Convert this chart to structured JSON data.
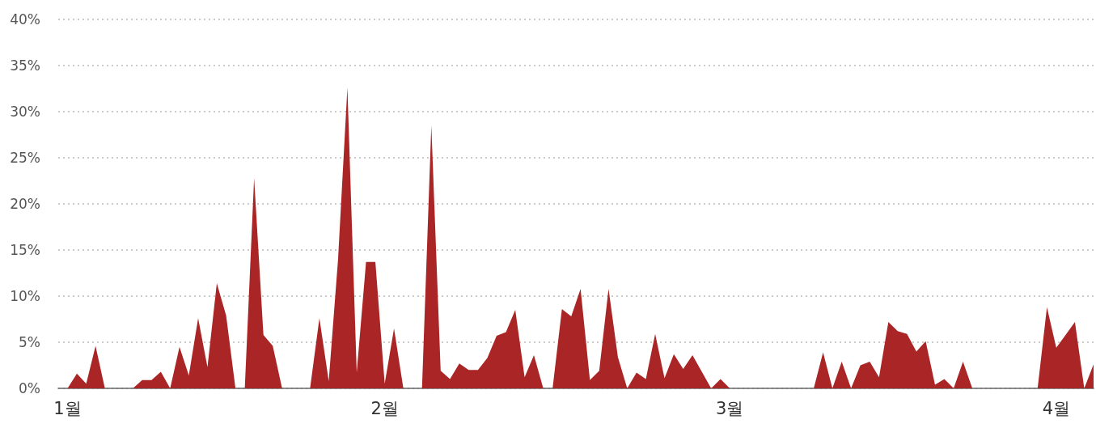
{
  "chart_data": {
    "type": "area",
    "categories": [
      null,
      "1월",
      null,
      null,
      null,
      null,
      null,
      null,
      null,
      null,
      null,
      null,
      null,
      null,
      null,
      null,
      null,
      null,
      null,
      null,
      null,
      null,
      null,
      null,
      null,
      null,
      null,
      null,
      null,
      null,
      null,
      null,
      null,
      null,
      null,
      "2월",
      null,
      null,
      null,
      null,
      null,
      null,
      null,
      null,
      null,
      null,
      null,
      null,
      null,
      null,
      null,
      null,
      null,
      null,
      null,
      null,
      null,
      null,
      null,
      null,
      null,
      null,
      null,
      null,
      null,
      null,
      null,
      null,
      null,
      null,
      null,
      null,
      "3월",
      null,
      null,
      null,
      null,
      null,
      null,
      null,
      null,
      null,
      null,
      null,
      null,
      null,
      null,
      null,
      null,
      null,
      null,
      null,
      null,
      null,
      null,
      null,
      null,
      null,
      null,
      null,
      null,
      null,
      null,
      null,
      null,
      null,
      null,
      "4월",
      null,
      null,
      null,
      null
    ],
    "values": [
      0,
      0,
      1.6,
      0.5,
      4.6,
      0,
      0,
      0,
      0,
      0.9,
      0.9,
      1.8,
      0,
      4.5,
      1.4,
      7.6,
      2.3,
      11.4,
      7.9,
      0,
      0,
      22.8,
      5.8,
      4.6,
      0,
      0,
      0,
      0,
      7.6,
      0.8,
      14,
      32.6,
      1.7,
      13.7,
      13.7,
      0.5,
      6.5,
      0,
      0,
      0,
      28.5,
      1.9,
      1.0,
      2.7,
      2.0,
      2.0,
      3.3,
      5.7,
      6.1,
      8.5,
      1.2,
      3.6,
      0,
      0,
      8.6,
      7.8,
      10.8,
      0.9,
      1.9,
      10.8,
      3.4,
      0,
      1.7,
      1.0,
      5.9,
      1.1,
      3.7,
      2.1,
      3.6,
      1.8,
      0,
      1.0,
      0,
      0,
      0,
      0,
      0,
      0,
      0,
      0,
      0,
      0,
      3.9,
      0,
      2.9,
      0,
      2.5,
      2.9,
      1.2,
      7.2,
      6.2,
      5.9,
      4.0,
      5.1,
      0.4,
      1.0,
      0,
      2.9,
      0,
      0,
      0,
      0,
      0,
      0,
      0,
      0,
      8.8,
      4.4,
      5.8,
      7.2,
      0,
      2.6
    ],
    "color": "#aa2626",
    "ylim": [
      0,
      40
    ],
    "yticks": [
      {
        "value": 0,
        "label": "0%"
      },
      {
        "value": 5,
        "label": "5%"
      },
      {
        "value": 10,
        "label": "10%"
      },
      {
        "value": 15,
        "label": "15%"
      },
      {
        "value": 20,
        "label": "20%"
      },
      {
        "value": 25,
        "label": "25%"
      },
      {
        "value": 30,
        "label": "30%"
      },
      {
        "value": 35,
        "label": "35%"
      },
      {
        "value": 40,
        "label": "40%"
      }
    ],
    "grid": "y"
  }
}
